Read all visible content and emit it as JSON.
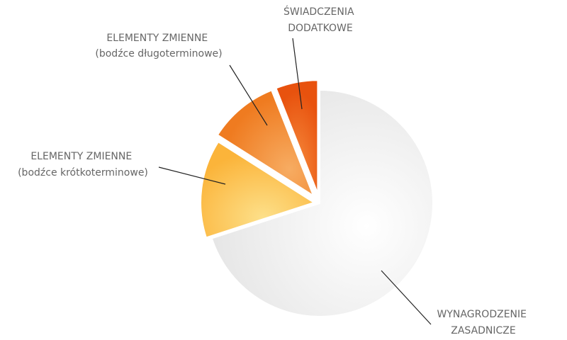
{
  "chart_data": {
    "type": "pie",
    "exploded": true,
    "slices": [
      {
        "label_lines": [
          "WYNAGRODZENIE",
          "ZASADNICZE"
        ],
        "value": 70,
        "color": "#e6e6e6",
        "color_light": "#fafafa"
      },
      {
        "label_lines": [
          "ELEMENTY ZMIENNE",
          "(bodźce krótkoterminowe)"
        ],
        "value": 14,
        "color": "#fbb43a",
        "color_light": "#fde08a"
      },
      {
        "label_lines": [
          "ELEMENTY ZMIENNE",
          "(bodźce długoterminowe)"
        ],
        "value": 10,
        "color": "#ef7b20",
        "color_light": "#f6a95e"
      },
      {
        "label_lines": [
          "ŚWIADCZENIA",
          "DODATKOWE"
        ],
        "value": 6,
        "color": "#e8520e",
        "color_light": "#f58a3c"
      }
    ]
  }
}
